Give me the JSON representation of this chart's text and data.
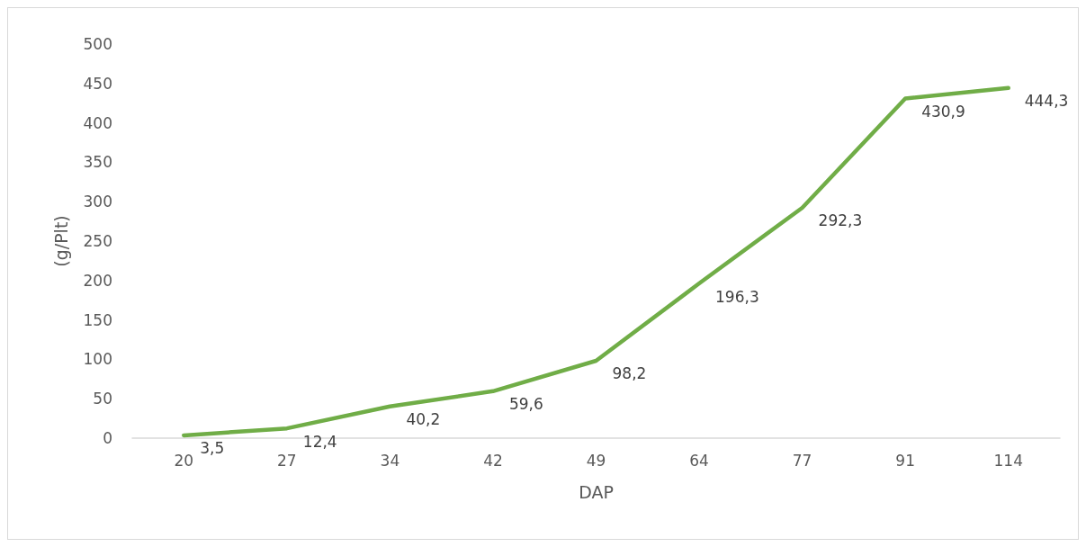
{
  "chart_data": {
    "type": "line",
    "xlabel": "DAP",
    "ylabel": "(g/Plt)",
    "categories": [
      "20",
      "27",
      "34",
      "42",
      "49",
      "64",
      "77",
      "91",
      "114"
    ],
    "series": [
      {
        "color": "#70ad47",
        "values": [
          3.5,
          12.4,
          40.2,
          59.6,
          98.2,
          196.3,
          292.3,
          430.9,
          444.3
        ],
        "value_labels": [
          "3,5",
          "12,4",
          "40,2",
          "59,6",
          "98,2",
          "196,3",
          "292,3",
          "430,9",
          "444,3"
        ]
      }
    ],
    "ylim": [
      0,
      500
    ],
    "yticks": [
      0,
      50,
      100,
      150,
      200,
      250,
      300,
      350,
      400,
      450,
      500
    ],
    "grid": false,
    "marker": "none",
    "line_style": "solid"
  }
}
